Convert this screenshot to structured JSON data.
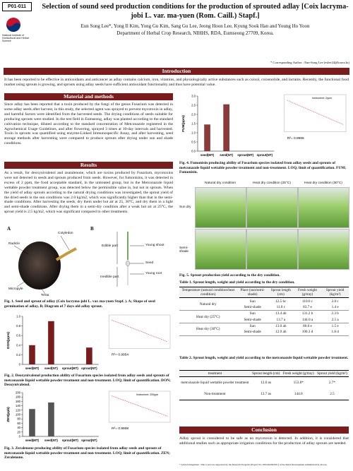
{
  "header": {
    "code": "P01-011",
    "institute": "National Institute of Horticultural and Herbal Science",
    "title": "Selection of sound seed production conditions for the production of sprouted adlay [Coix lacryma-jobi L. var. ma-yuen (Rom. Caill.) Stapf.]",
    "authors": "Eun Song Lee*, Yong Il Kim, Yong Gu Kim, Sang Gu Lee, Jeong Hoon Lee, Kyung Sook Han and Young Ho Yoon",
    "affiliation": "Department of Herbal Crop Research, NIHHS, RDA, Eumseong 27709, Korea.",
    "corresponding": "* Corresponding Author : Eun-Song Lee (eslee24@korea.kr)"
  },
  "introduction": {
    "heading": "Introduction",
    "text": "It has been reported to be effective in antioxidants and anticancer as adlay contains calcium, iron, vitamins, and physiologically active substances such as coixol, coixenolide, and lactams. Recently, the functional food market using sprouts is growing, and sprouts using adlay seeds have sufficient antioxidant functionality and thus have potential value."
  },
  "methods": {
    "heading": "Material and methods",
    "text": "Since adlay has been reported that a toxin produced by the fungi of the genus Fusarium was detected in some adlay seeds after harvest, in this study, the selected agent was sprayed to prevent mycotoxin in adlay, and harmful factors were identified from the harvested seeds. The drying conditions of seeds suitable for producing sprouts were studied. In the test field in Eumseong, adlay was planted according to the standard cultivation technique, diluted according to the standard concentration of Metconazole registered in the Agrochemical Usage Guidelines, and after flowering, sprayed 3 times at 10-day intervals and harvested. Toxin in sprouts was quantified using enzyme-Linked Immunospecific Assay, and after harvesting, seed storage methods after harvesting were compared to produce sprouts after drying under sun and shade conditions."
  },
  "results": {
    "heading": "Results",
    "text": "As a result, for deoxynivalenol and zearalenone, which are toxins produced by Fusarium, mycotoxins were not detected in seeds and sprouts produced from seeds. However, for fumonisins, it was detected in excess of 2 ppm, the food acceptable standard, in the untreated group, but in the Metconazole liquid wettable powder treatment group, was detected below the permissible value in, but not in sprouts. When the yield of adlay sprouts according to the natural drying conditions was investigated, the sprout yield of the dried seeds in the sun conditions was 2.0 kg/m2, which was significantly higher than that in the semi-shade conditions. After harvesting the seeds, dry them under hot air at 25, 30°C, and dry them in a light and semi-shade conditions. After drying them in a semi-dry condition after a weak hot air at 25°C, the sprout yield is 2.5 kg/m2, which was significant compared to other treatments."
  },
  "figure1": {
    "panel_a": "A",
    "panel_b": "B",
    "labels_a": [
      "Radicle",
      "Cotyledon",
      "Micropyle",
      "Testa"
    ],
    "labels_b": [
      "Edible part",
      "Young shoot",
      "Seed",
      "Young root",
      "Inedible part"
    ],
    "caption": "Fig. 1. Seed and sprout of adlay (Coix lacryma-jobi L. var. ma-yuen Stapf. ). A; Shape of seed germination of adlay, B; Diagram of 7 days old adlay sprout."
  },
  "figure2": {
    "type": "bar",
    "y_label": "DON(ppm)",
    "categories": [
      "seed(MT)",
      "seed(NT)",
      "sprout(MT)",
      "sprout(NT)"
    ],
    "values": [
      0.4,
      0.9,
      0,
      0.35
    ],
    "color": "#7a1c1c",
    "ylim": [
      0,
      1.0
    ],
    "yticks": [
      0,
      0.2,
      0.4,
      0.6,
      0.8,
      {
        "value": 1,
        "label": "1.0"
      }
    ],
    "r_squared": "R²= 0.9954",
    "caption": "Fig. 2. Deoxynivalenol production ability of Fusarium species isolated from adlay seeds and sprouts of metconazole liquid wettable powder treatment and non-treatment. LOQ; limit of quantification. DON; Deoxynivalenol."
  },
  "figure3": {
    "type": "bar",
    "y_label": "ZEN(ppb)",
    "categories": [
      "seed(MT)",
      "seed(NT)",
      "sprout(MT)",
      "sprout(NT)"
    ],
    "values": [
      125,
      155,
      0,
      0
    ],
    "color": "#555555",
    "ylim": [
      0,
      200
    ],
    "yticks": [
      0,
      20,
      40,
      60,
      80,
      100,
      120,
      140,
      160,
      180,
      200
    ],
    "instrument": "Instrument: 200ppb",
    "r_squared": "R²= 0.9908",
    "caption": "Fig. 3. Zeralenone producing ability of Fusarium species isolated from adlay seeds and sprouts of metconazole liquid wettable powder treatment and non-treatment. LOQ; limit of quantification. ZEN; Zeralenone."
  },
  "figure4": {
    "type": "bar",
    "y_label": "FUM(ppm)",
    "categories": [
      "seed(MT)",
      "seed(NT)",
      "sprout(MT)",
      "sprout(NT)"
    ],
    "values": [
      1.45,
      2.55,
      0,
      0
    ],
    "color": "#8b3a3a",
    "ylim": [
      0,
      3.0
    ],
    "yticks": [
      {
        "value": 0,
        "label": "0.0"
      },
      0.5,
      {
        "value": 1,
        "label": "1.0"
      },
      1.5,
      {
        "value": 2,
        "label": "2.0"
      },
      2.5,
      {
        "value": 3,
        "label": "3.0"
      }
    ],
    "instrument": "Instrument: 2ppm",
    "r_squared": "R²= 0.9966",
    "caption": "Fig. 4. Fumonisin producing ability of Fusarium species isolated from adlay seeds and sprouts of metconazole liquid wettable powder treatment and non-treatment. LOQ; limit of quantification. FUM; Fumonisin."
  },
  "figure5": {
    "columns": [
      "Natural dry condition",
      "Heat dry condition (25°C)",
      "Heat dry condition (30°C)"
    ],
    "rows": [
      "Sun dry",
      "Semi-shade"
    ],
    "caption": "Fig. 5. Sprout production yield according to the dry condition."
  },
  "table1": {
    "title": "Table 1. Sprout length, weight and yield according to the dry condition.",
    "header": [
      "Temperature (natural condition/heat condition)",
      "Place (sun/semi-shade)",
      "Sprout length (cm)",
      "Fresh weight (g/tray)",
      "Sprout yield (kg/m²)"
    ],
    "groups": [
      "Natural dry",
      "Heat dry (25°C)",
      "Heat dry (30°C)"
    ],
    "rows": [
      [
        "Sun",
        "12.5 bc",
        "110.6 c",
        "2.0 c"
      ],
      [
        "Semi-shade",
        "11.8 c",
        "83.7 e",
        "1.4 e"
      ],
      [
        "Sun",
        "13.4 ab",
        "131.2 b",
        "2.3 b"
      ],
      [
        "Semi-shade",
        "13.7 a",
        "144.0 a",
        "2.5 a"
      ],
      [
        "Sun",
        "13.0 ab",
        "86.0 e",
        "1.5 e"
      ],
      [
        "Semi-shade",
        "12.9 ab",
        "100.3 d",
        "1.8 d"
      ]
    ]
  },
  "table2": {
    "title": "Table 2. Sprout length, weight and yield according to the metconazole liquid wettable powder treatment.",
    "header": [
      "treatment",
      "Sprout length (cm)",
      "Fresh weight (g/tray)",
      "Sprout yield (kg/m²)"
    ],
    "rows": [
      [
        "metconazole liquid wettable powder treatment",
        "12.6 ns",
        "153.8*",
        "2.7*"
      ],
      [
        "Non-treatment",
        "13.7 ns",
        "144.0",
        "2.5"
      ]
    ]
  },
  "conclusion": {
    "heading": "Conclusion",
    "text": "Adlay sprout is considered to be safe as no mycotoxin is detected. In addition, it is considered that additional studies such as appropriate irrigation conditions for the production of adlay sprouts are needed."
  },
  "acknowledgement": "* Acknowledgement : This work was supported by the Research Program (Project No. PJ01494302021) of the Rural Development Administration, Korea."
}
